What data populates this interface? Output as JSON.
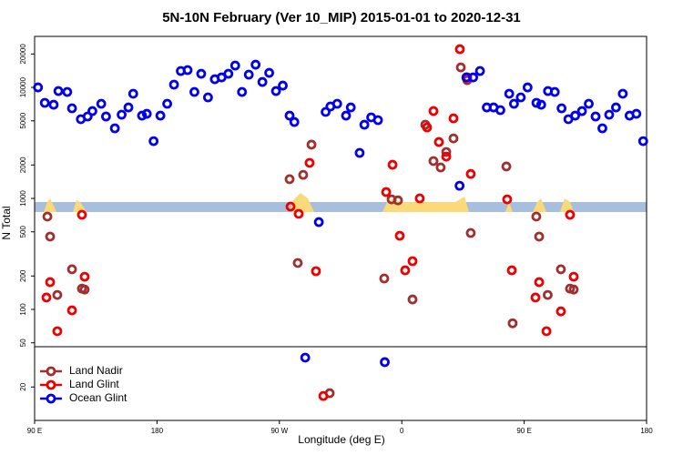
{
  "chart_data": {
    "type": "scatter",
    "title": "5N-10N February (Ver 10_MIP)   2015-01-01 to 2020-12-31",
    "x_label": "Longitude (deg E)",
    "y_label": "N Total",
    "log_y": true,
    "legend": "lower left",
    "xlim": [
      90,
      540
    ],
    "xticks": [
      {
        "value": 90,
        "label": "90 E"
      },
      180,
      {
        "value": 270,
        "label": "90 W"
      },
      {
        "value": 360,
        "label": "0"
      },
      {
        "value": 450,
        "label": "90 E"
      },
      {
        "value": 540,
        "label": "180"
      }
    ],
    "ylim": [
      10,
      28800
    ],
    "yticks": [
      20,
      50,
      100,
      200,
      500,
      1000,
      2000,
      5000,
      10000,
      20000
    ],
    "series": [
      {
        "name": "Land Nadir",
        "color": "#a0302f",
        "x": [
          99.4,
          101.4,
          106.7,
          117.5,
          124.8,
          126.8,
          277.5,
          287.5,
          293.6,
          283.5,
          347.1,
          352.5,
          357.2,
          367.9,
          377.3,
          383.3,
          388.6,
          392.7,
          398,
          403.4,
          408.1,
          410.7,
          436.9,
          441.5,
          458.9,
          461,
          467.3,
          477,
          483.7,
          486.4,
          307
        ],
        "values": [
          686,
          453,
          135,
          230,
          154,
          151,
          1490,
          1630,
          3050,
          262,
          190,
          980,
          960,
          123,
          4610,
          2170,
          1900,
          2620,
          3470,
          15140,
          11630,
          488,
          1940,
          75,
          686,
          453,
          135,
          230,
          154,
          151,
          17.6
        ]
      },
      {
        "name": "Land Glint",
        "color": "#ee0000",
        "x": [
          98.7,
          101.4,
          106.7,
          117.5,
          124.8,
          126.8,
          278.2,
          284.2,
          292.2,
          296.9,
          302.3,
          348.5,
          353.2,
          358.5,
          362.5,
          367.9,
          373.2,
          378.6,
          383.3,
          387.3,
          392.7,
          398,
          402.7,
          408.1,
          410.7,
          437.5,
          440.9,
          458.3,
          461,
          466.4,
          477,
          483.7,
          486.4
        ],
        "values": [
          128,
          176,
          63.6,
          98,
          712,
          197,
          844,
          726,
          2090,
          221,
          16.6,
          1140,
          2010,
          461,
          225,
          272,
          1000,
          4360,
          6120,
          3220,
          2380,
          5260,
          22080,
          12300,
          1660,
          980,
          225,
          128,
          176,
          63.6,
          96,
          712,
          197
        ]
      },
      {
        "name": "Ocean Glint",
        "color": "#0000ee",
        "x": [
          92.5,
          97.5,
          104,
          107.5,
          114,
          117.5,
          124,
          129,
          132.5,
          139,
          142.5,
          149,
          154,
          159,
          162.5,
          169,
          172.5,
          177.5,
          182.5,
          187.5,
          192.5,
          197.5,
          202.5,
          207.5,
          212.5,
          217.5,
          222.5,
          227.5,
          232.5,
          237.5,
          242.5,
          247.5,
          252.5,
          257.5,
          262.5,
          267.5,
          272.5,
          277.5,
          281,
          289,
          299,
          304,
          307.5,
          312.5,
          319,
          322.5,
          329,
          332.5,
          337.5,
          342.5,
          347.5,
          402.5,
          407.5,
          412.5,
          417.5,
          422.5,
          427.5,
          432.5,
          439,
          442.5,
          447.5,
          452.5,
          459,
          462.5,
          467.5,
          472.5,
          477.5,
          482.5,
          487.5,
          492.5,
          497.5,
          502.5,
          507.5,
          512.5,
          517.5,
          522.5,
          527.5,
          532.5,
          537.5
        ],
        "values": [
          10000,
          7260,
          6980,
          9270,
          9100,
          6480,
          5170,
          5470,
          6120,
          7120,
          5470,
          4280,
          5680,
          6600,
          8770,
          5570,
          5780,
          3280,
          5570,
          7120,
          10590,
          14050,
          14320,
          9100,
          13270,
          8130,
          11850,
          12300,
          13270,
          15740,
          9100,
          13030,
          16030,
          11190,
          13520,
          9270,
          10380,
          5570,
          4880,
          36.8,
          612,
          6010,
          6730,
          7120,
          5570,
          6600,
          2570,
          4610,
          5370,
          5070,
          33.5,
          1300,
          12300,
          12300,
          14050,
          6600,
          6600,
          6240,
          8770,
          7120,
          8130,
          10000,
          7260,
          6980,
          9270,
          9100,
          6480,
          5170,
          5570,
          6120,
          7120,
          5470,
          4280,
          5680,
          6600,
          8770,
          5570,
          5780,
          3280
        ]
      }
    ]
  }
}
